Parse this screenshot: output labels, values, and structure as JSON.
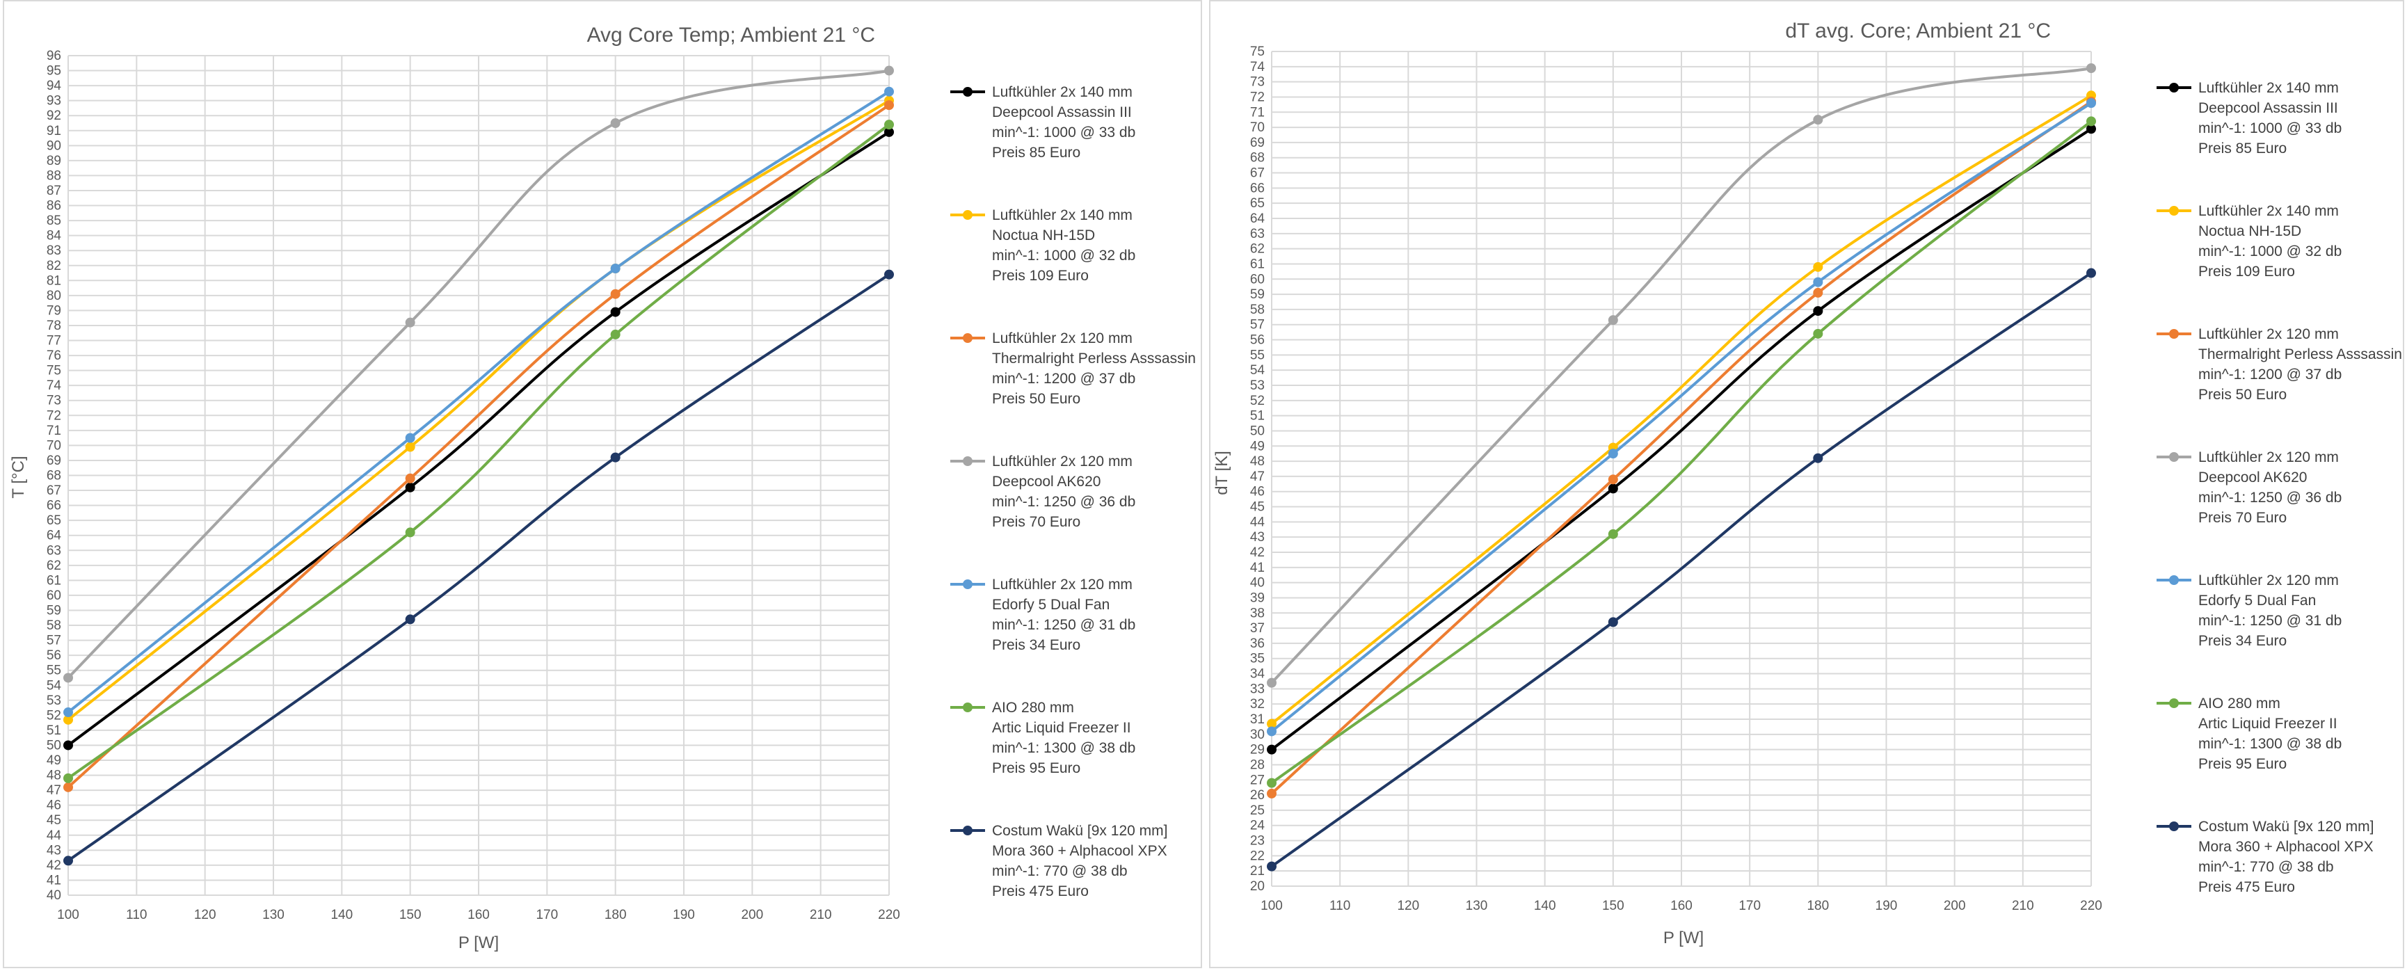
{
  "chart_data": [
    {
      "type": "line",
      "title": "Avg Core Temp; Ambient 21 °C",
      "xlabel": "P [W]",
      "ylabel": "T [°C]",
      "xlim": [
        100,
        220
      ],
      "ylim": [
        40,
        96
      ],
      "x_ticks": [
        100,
        110,
        120,
        130,
        140,
        150,
        160,
        170,
        180,
        190,
        200,
        210,
        220
      ],
      "y_tick_step": 1,
      "grid": true,
      "smooth": true,
      "legend_position": "right",
      "x": [
        100,
        150,
        180,
        220
      ],
      "series": [
        {
          "name_lines": [
            "Luftkühler 2x 140 mm",
            "Deepcool Assassin III",
            "min^-1: 1000 @ 33 db",
            "Preis 85 Euro"
          ],
          "color": "#000000",
          "values": [
            50.0,
            67.2,
            78.9,
            90.9
          ]
        },
        {
          "name_lines": [
            "Luftkühler 2x 140 mm",
            "Noctua NH-15D",
            "min^-1: 1000 @ 32 db",
            "Preis 109 Euro"
          ],
          "color": "#ffc000",
          "values": [
            51.7,
            69.9,
            81.8,
            93.0
          ]
        },
        {
          "name_lines": [
            "Luftkühler 2x 120 mm",
            "Thermalright Perless Asssassin",
            "min^-1: 1200 @ 37 db",
            "Preis 50 Euro"
          ],
          "color": "#ed7d31",
          "values": [
            47.2,
            67.8,
            80.1,
            92.7
          ]
        },
        {
          "name_lines": [
            "Luftkühler 2x 120 mm",
            "Deepcool AK620",
            "min^-1: 1250 @ 36 db",
            "Preis 70 Euro"
          ],
          "color": "#a5a5a5",
          "values": [
            54.5,
            78.2,
            91.5,
            95.0
          ]
        },
        {
          "name_lines": [
            "Luftkühler 2x 120 mm",
            "Edorfy 5 Dual Fan",
            "min^-1: 1250 @ 31 db",
            "Preis 34 Euro"
          ],
          "color": "#5b9bd5",
          "values": [
            52.2,
            70.5,
            81.8,
            93.6
          ]
        },
        {
          "name_lines": [
            "AIO 280 mm",
            "Artic Liquid Freezer II",
            "min^-1: 1300 @ 38 db",
            "Preis 95 Euro"
          ],
          "color": "#70ad47",
          "values": [
            47.8,
            64.2,
            77.4,
            91.4
          ]
        },
        {
          "name_lines": [
            "Costum Wakü [9x 120 mm]",
            "Mora 360 + Alphacool XPX",
            "min^-1: 770  @ 38 db",
            "Preis 475 Euro"
          ],
          "color": "#203864",
          "values": [
            42.3,
            58.4,
            69.2,
            81.4
          ]
        }
      ]
    },
    {
      "type": "line",
      "title": "dT avg. Core; Ambient 21 °C",
      "xlabel": "P [W]",
      "ylabel": "dT [K]",
      "xlim": [
        100,
        220
      ],
      "ylim": [
        20,
        75
      ],
      "x_ticks": [
        100,
        110,
        120,
        130,
        140,
        150,
        160,
        170,
        180,
        190,
        200,
        210,
        220
      ],
      "y_tick_step": 1,
      "grid": true,
      "smooth": true,
      "legend_position": "right",
      "x": [
        100,
        150,
        180,
        220
      ],
      "series": [
        {
          "name_lines": [
            "Luftkühler 2x 140 mm",
            "Deepcool Assassin III",
            "min^-1: 1000 @ 33 db",
            "Preis 85 Euro"
          ],
          "color": "#000000",
          "values": [
            29.0,
            46.2,
            57.9,
            69.9
          ]
        },
        {
          "name_lines": [
            "Luftkühler 2x 140 mm",
            "Noctua NH-15D",
            "min^-1: 1000 @ 32 db",
            "Preis 109 Euro"
          ],
          "color": "#ffc000",
          "values": [
            30.7,
            48.9,
            60.8,
            72.1
          ]
        },
        {
          "name_lines": [
            "Luftkühler 2x 120 mm",
            "Thermalright Perless Asssassin",
            "min^-1: 1200 @ 37 db",
            "Preis 50 Euro"
          ],
          "color": "#ed7d31",
          "values": [
            26.1,
            46.8,
            59.1,
            71.7
          ]
        },
        {
          "name_lines": [
            "Luftkühler 2x 120 mm",
            "Deepcool AK620",
            "min^-1: 1250 @ 36 db",
            "Preis 70 Euro"
          ],
          "color": "#a5a5a5",
          "values": [
            33.4,
            57.3,
            70.5,
            73.9
          ]
        },
        {
          "name_lines": [
            "Luftkühler 2x 120 mm",
            "Edorfy 5 Dual Fan",
            "min^-1: 1250 @ 31 db",
            "Preis 34 Euro"
          ],
          "color": "#5b9bd5",
          "values": [
            30.2,
            48.5,
            59.8,
            71.6
          ]
        },
        {
          "name_lines": [
            "AIO 280 mm",
            "Artic Liquid Freezer II",
            "min^-1: 1300 @ 38 db",
            "Preis 95 Euro"
          ],
          "color": "#70ad47",
          "values": [
            26.8,
            43.2,
            56.4,
            70.4
          ]
        },
        {
          "name_lines": [
            "Costum Wakü [9x 120 mm]",
            "Mora 360 + Alphacool XPX",
            "min^-1: 770  @ 38 db",
            "Preis 475 Euro"
          ],
          "color": "#203864",
          "values": [
            21.3,
            37.4,
            48.2,
            60.4
          ]
        }
      ]
    }
  ]
}
